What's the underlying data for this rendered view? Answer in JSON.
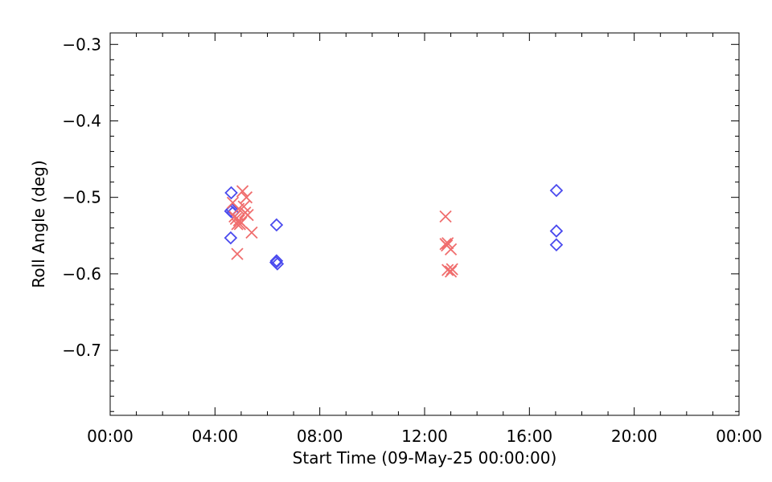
{
  "chart_data": {
    "type": "scatter",
    "xlabel": "Start Time (09-May-25 00:00:00)",
    "ylabel": "Roll Angle (deg)",
    "xlim": [
      0,
      24
    ],
    "ylim": [
      -0.785,
      -0.285
    ],
    "x_unit": "hours",
    "x_ticks": [
      {
        "value": 0,
        "label": "00:00"
      },
      {
        "value": 4,
        "label": "04:00"
      },
      {
        "value": 8,
        "label": "08:00"
      },
      {
        "value": 12,
        "label": "12:00"
      },
      {
        "value": 16,
        "label": "16:00"
      },
      {
        "value": 20,
        "label": "20:00"
      },
      {
        "value": 24,
        "label": "00:00"
      }
    ],
    "y_ticks": [
      {
        "value": -0.3,
        "label": "−0.3"
      },
      {
        "value": -0.4,
        "label": "−0.4"
      },
      {
        "value": -0.5,
        "label": "−0.5"
      },
      {
        "value": -0.6,
        "label": "−0.6"
      },
      {
        "value": -0.7,
        "label": "−0.7"
      }
    ],
    "grid": false,
    "series": [
      {
        "marker": "diamond",
        "color": "#4a4aee",
        "points": [
          {
            "x": 4.62,
            "y": -0.494
          },
          {
            "x": 4.6,
            "y": -0.518
          },
          {
            "x": 4.65,
            "y": -0.516
          },
          {
            "x": 4.68,
            "y": -0.52
          },
          {
            "x": 4.6,
            "y": -0.553
          },
          {
            "x": 6.35,
            "y": -0.536
          },
          {
            "x": 6.35,
            "y": -0.583
          },
          {
            "x": 6.38,
            "y": -0.587
          },
          {
            "x": 6.33,
            "y": -0.585
          },
          {
            "x": 17.03,
            "y": -0.491
          },
          {
            "x": 17.03,
            "y": -0.544
          },
          {
            "x": 17.03,
            "y": -0.562
          }
        ]
      },
      {
        "marker": "x",
        "color": "#f06e6e",
        "points": [
          {
            "x": 4.68,
            "y": -0.507
          },
          {
            "x": 4.75,
            "y": -0.525
          },
          {
            "x": 4.8,
            "y": -0.528
          },
          {
            "x": 4.85,
            "y": -0.535
          },
          {
            "x": 4.9,
            "y": -0.515
          },
          {
            "x": 4.92,
            "y": -0.53
          },
          {
            "x": 4.95,
            "y": -0.535
          },
          {
            "x": 5.0,
            "y": -0.533
          },
          {
            "x": 5.05,
            "y": -0.492
          },
          {
            "x": 5.1,
            "y": -0.512
          },
          {
            "x": 5.15,
            "y": -0.52
          },
          {
            "x": 5.2,
            "y": -0.5
          },
          {
            "x": 5.25,
            "y": -0.523
          },
          {
            "x": 5.4,
            "y": -0.546
          },
          {
            "x": 4.85,
            "y": -0.574
          },
          {
            "x": 12.8,
            "y": -0.525
          },
          {
            "x": 12.8,
            "y": -0.561
          },
          {
            "x": 12.85,
            "y": -0.563
          },
          {
            "x": 12.88,
            "y": -0.56
          },
          {
            "x": 13.0,
            "y": -0.568
          },
          {
            "x": 12.88,
            "y": -0.595
          },
          {
            "x": 13.0,
            "y": -0.597
          },
          {
            "x": 13.05,
            "y": -0.594
          }
        ]
      }
    ]
  }
}
